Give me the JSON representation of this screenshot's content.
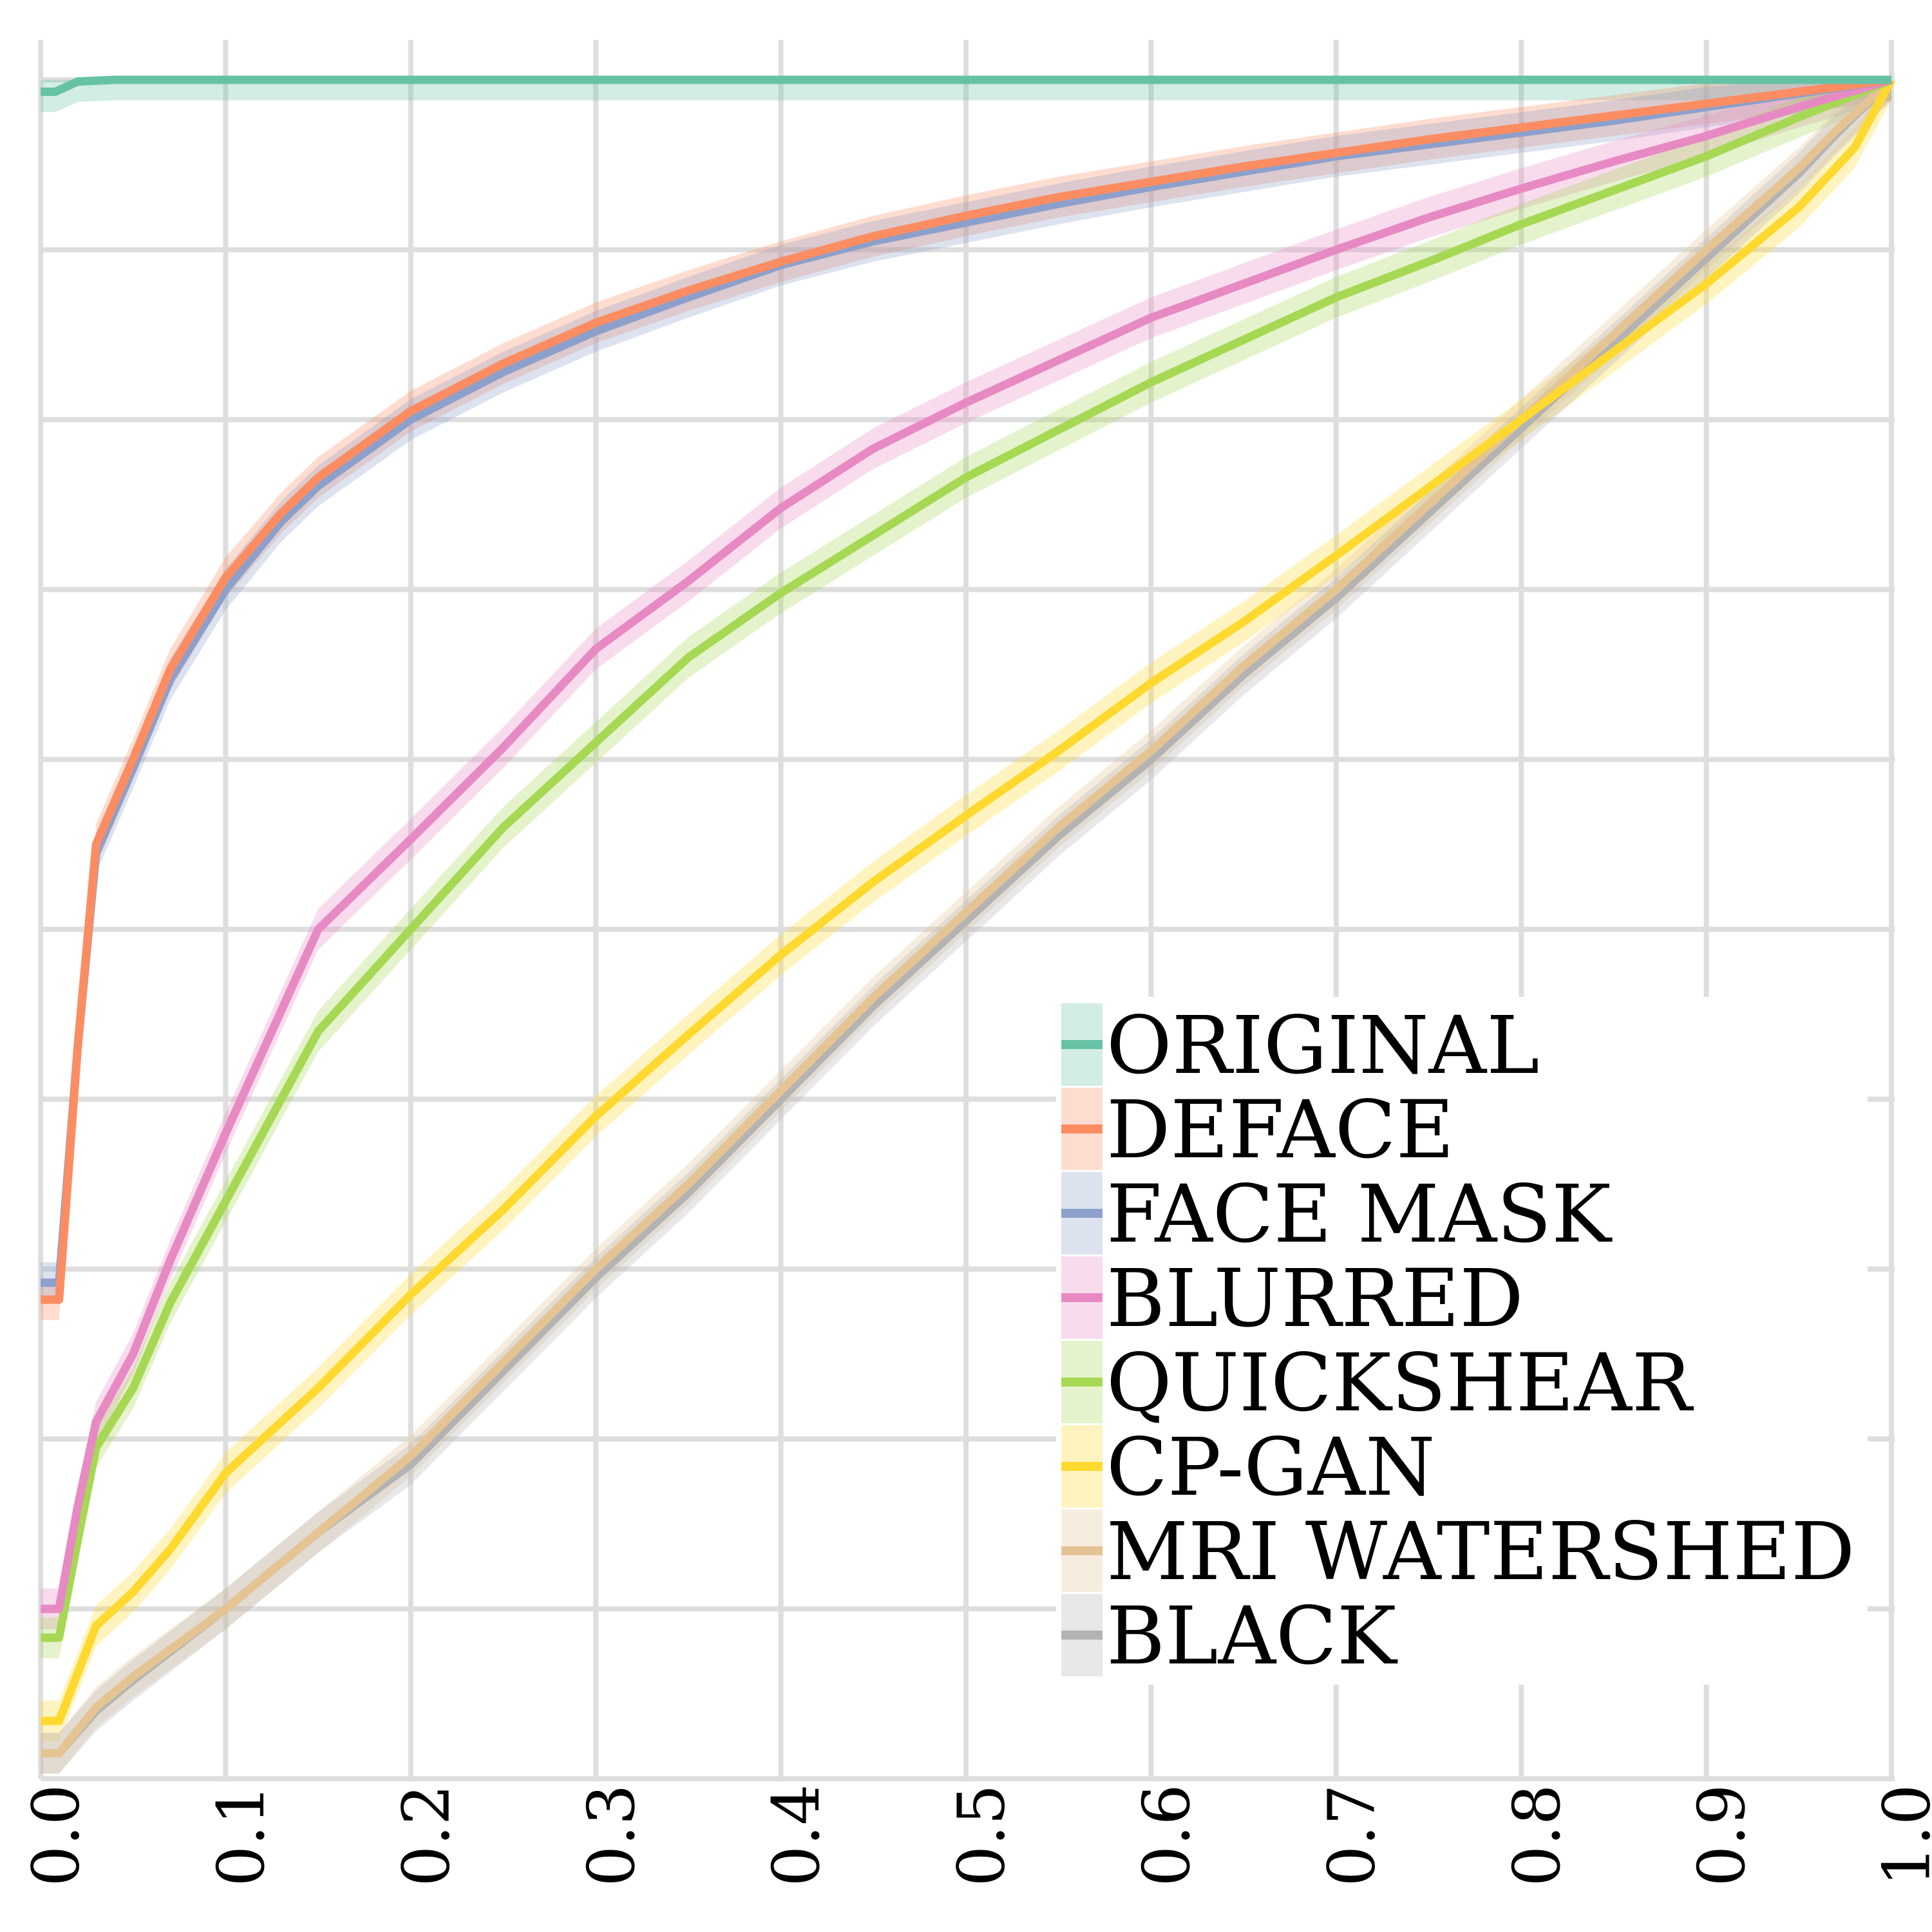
{
  "chart_data": {
    "type": "line",
    "xlim": [
      0,
      1
    ],
    "ylim": [
      0,
      1
    ],
    "x_ticks": [
      "0.0",
      "0.1",
      "0.2",
      "0.3",
      "0.4",
      "0.5",
      "0.6",
      "0.7",
      "0.8",
      "0.9",
      "1.0"
    ],
    "y_grid_values": [
      0.1,
      0.2,
      0.3,
      0.4,
      0.5,
      0.6,
      0.7,
      0.8,
      0.9,
      1.0
    ],
    "grid": true,
    "legend_position": "bottom-right",
    "series": [
      {
        "name": "ORIGINAL",
        "color": "#66c2a5",
        "points": [
          [
            0.0,
            0.993
          ],
          [
            0.008,
            0.993
          ],
          [
            0.02,
            0.999
          ],
          [
            0.04,
            1.0
          ],
          [
            1.0,
            1.0
          ]
        ]
      },
      {
        "name": "DEFACE",
        "color": "#fc8d62",
        "points": [
          [
            0.0,
            0.282
          ],
          [
            0.01,
            0.282
          ],
          [
            0.02,
            0.43
          ],
          [
            0.03,
            0.55
          ],
          [
            0.05,
            0.6
          ],
          [
            0.07,
            0.653
          ],
          [
            0.1,
            0.707
          ],
          [
            0.13,
            0.745
          ],
          [
            0.15,
            0.766
          ],
          [
            0.2,
            0.805
          ],
          [
            0.25,
            0.833
          ],
          [
            0.3,
            0.857
          ],
          [
            0.35,
            0.876
          ],
          [
            0.4,
            0.893
          ],
          [
            0.45,
            0.908
          ],
          [
            0.5,
            0.92
          ],
          [
            0.55,
            0.931
          ],
          [
            0.6,
            0.94
          ],
          [
            0.65,
            0.949
          ],
          [
            0.7,
            0.957
          ],
          [
            0.75,
            0.965
          ],
          [
            0.8,
            0.972
          ],
          [
            0.85,
            0.979
          ],
          [
            0.9,
            0.986
          ],
          [
            0.95,
            0.993
          ],
          [
            1.0,
            1.0
          ]
        ]
      },
      {
        "name": "FACE MASK",
        "color": "#8da0cb",
        "points": [
          [
            0.0,
            0.292
          ],
          [
            0.01,
            0.292
          ],
          [
            0.02,
            0.43
          ],
          [
            0.03,
            0.545
          ],
          [
            0.05,
            0.595
          ],
          [
            0.07,
            0.647
          ],
          [
            0.1,
            0.7
          ],
          [
            0.13,
            0.74
          ],
          [
            0.15,
            0.761
          ],
          [
            0.2,
            0.8
          ],
          [
            0.25,
            0.828
          ],
          [
            0.3,
            0.852
          ],
          [
            0.35,
            0.872
          ],
          [
            0.4,
            0.891
          ],
          [
            0.45,
            0.905
          ],
          [
            0.5,
            0.916
          ],
          [
            0.55,
            0.927
          ],
          [
            0.6,
            0.937
          ],
          [
            0.65,
            0.946
          ],
          [
            0.7,
            0.955
          ],
          [
            0.75,
            0.962
          ],
          [
            0.8,
            0.969
          ],
          [
            0.85,
            0.976
          ],
          [
            0.9,
            0.984
          ],
          [
            0.95,
            0.992
          ],
          [
            1.0,
            1.0
          ]
        ]
      },
      {
        "name": "BLURRED",
        "color": "#e78ac3",
        "points": [
          [
            0.0,
            0.1
          ],
          [
            0.01,
            0.1
          ],
          [
            0.02,
            0.16
          ],
          [
            0.03,
            0.21
          ],
          [
            0.05,
            0.25
          ],
          [
            0.07,
            0.305
          ],
          [
            0.1,
            0.38
          ],
          [
            0.15,
            0.5
          ],
          [
            0.2,
            0.553
          ],
          [
            0.25,
            0.607
          ],
          [
            0.3,
            0.665
          ],
          [
            0.35,
            0.705
          ],
          [
            0.4,
            0.748
          ],
          [
            0.45,
            0.783
          ],
          [
            0.5,
            0.81
          ],
          [
            0.55,
            0.835
          ],
          [
            0.6,
            0.86
          ],
          [
            0.65,
            0.88
          ],
          [
            0.7,
            0.9
          ],
          [
            0.75,
            0.919
          ],
          [
            0.8,
            0.936
          ],
          [
            0.85,
            0.952
          ],
          [
            0.9,
            0.967
          ],
          [
            0.95,
            0.984
          ],
          [
            1.0,
            1.0
          ]
        ]
      },
      {
        "name": "QUICKSHEAR",
        "color": "#a6d854",
        "points": [
          [
            0.0,
            0.083
          ],
          [
            0.01,
            0.083
          ],
          [
            0.02,
            0.14
          ],
          [
            0.03,
            0.195
          ],
          [
            0.05,
            0.23
          ],
          [
            0.07,
            0.28
          ],
          [
            0.1,
            0.34
          ],
          [
            0.15,
            0.44
          ],
          [
            0.2,
            0.5
          ],
          [
            0.25,
            0.56
          ],
          [
            0.3,
            0.61
          ],
          [
            0.35,
            0.66
          ],
          [
            0.4,
            0.698
          ],
          [
            0.45,
            0.732
          ],
          [
            0.5,
            0.766
          ],
          [
            0.55,
            0.794
          ],
          [
            0.6,
            0.822
          ],
          [
            0.65,
            0.847
          ],
          [
            0.7,
            0.872
          ],
          [
            0.75,
            0.893
          ],
          [
            0.8,
            0.915
          ],
          [
            0.85,
            0.935
          ],
          [
            0.9,
            0.955
          ],
          [
            0.95,
            0.978
          ],
          [
            1.0,
            1.0
          ]
        ]
      },
      {
        "name": "CP-GAN",
        "color": "#ffd92f",
        "points": [
          [
            0.0,
            0.034
          ],
          [
            0.01,
            0.034
          ],
          [
            0.03,
            0.09
          ],
          [
            0.05,
            0.11
          ],
          [
            0.07,
            0.135
          ],
          [
            0.1,
            0.18
          ],
          [
            0.15,
            0.23
          ],
          [
            0.2,
            0.285
          ],
          [
            0.25,
            0.335
          ],
          [
            0.3,
            0.39
          ],
          [
            0.35,
            0.438
          ],
          [
            0.4,
            0.485
          ],
          [
            0.45,
            0.528
          ],
          [
            0.5,
            0.567
          ],
          [
            0.55,
            0.605
          ],
          [
            0.6,
            0.645
          ],
          [
            0.65,
            0.681
          ],
          [
            0.7,
            0.72
          ],
          [
            0.75,
            0.76
          ],
          [
            0.8,
            0.8
          ],
          [
            0.85,
            0.84
          ],
          [
            0.9,
            0.88
          ],
          [
            0.95,
            0.925
          ],
          [
            0.98,
            0.96
          ],
          [
            1.0,
            1.0
          ]
        ]
      },
      {
        "name": "MRI WATERSHED",
        "color": "#e5c494",
        "points": [
          [
            0.0,
            0.015
          ],
          [
            0.01,
            0.015
          ],
          [
            0.03,
            0.042
          ],
          [
            0.05,
            0.06
          ],
          [
            0.1,
            0.1
          ],
          [
            0.15,
            0.145
          ],
          [
            0.2,
            0.19
          ],
          [
            0.25,
            0.245
          ],
          [
            0.3,
            0.3
          ],
          [
            0.35,
            0.35
          ],
          [
            0.4,
            0.405
          ],
          [
            0.45,
            0.46
          ],
          [
            0.5,
            0.51
          ],
          [
            0.55,
            0.56
          ],
          [
            0.6,
            0.605
          ],
          [
            0.65,
            0.655
          ],
          [
            0.7,
            0.7
          ],
          [
            0.75,
            0.75
          ],
          [
            0.8,
            0.8
          ],
          [
            0.85,
            0.85
          ],
          [
            0.9,
            0.9
          ],
          [
            0.95,
            0.948
          ],
          [
            0.97,
            0.97
          ],
          [
            1.0,
            1.0
          ]
        ]
      },
      {
        "name": "BLACK",
        "color": "#b3b3b3",
        "points": [
          [
            0.0,
            0.015
          ],
          [
            0.01,
            0.015
          ],
          [
            0.03,
            0.04
          ],
          [
            0.05,
            0.058
          ],
          [
            0.1,
            0.1
          ],
          [
            0.15,
            0.145
          ],
          [
            0.2,
            0.185
          ],
          [
            0.25,
            0.24
          ],
          [
            0.3,
            0.295
          ],
          [
            0.35,
            0.345
          ],
          [
            0.4,
            0.4
          ],
          [
            0.45,
            0.455
          ],
          [
            0.5,
            0.505
          ],
          [
            0.55,
            0.555
          ],
          [
            0.6,
            0.6
          ],
          [
            0.65,
            0.65
          ],
          [
            0.7,
            0.695
          ],
          [
            0.75,
            0.745
          ],
          [
            0.8,
            0.795
          ],
          [
            0.85,
            0.845
          ],
          [
            0.9,
            0.895
          ],
          [
            0.95,
            0.945
          ],
          [
            0.97,
            0.968
          ],
          [
            1.0,
            1.0
          ]
        ]
      }
    ]
  }
}
